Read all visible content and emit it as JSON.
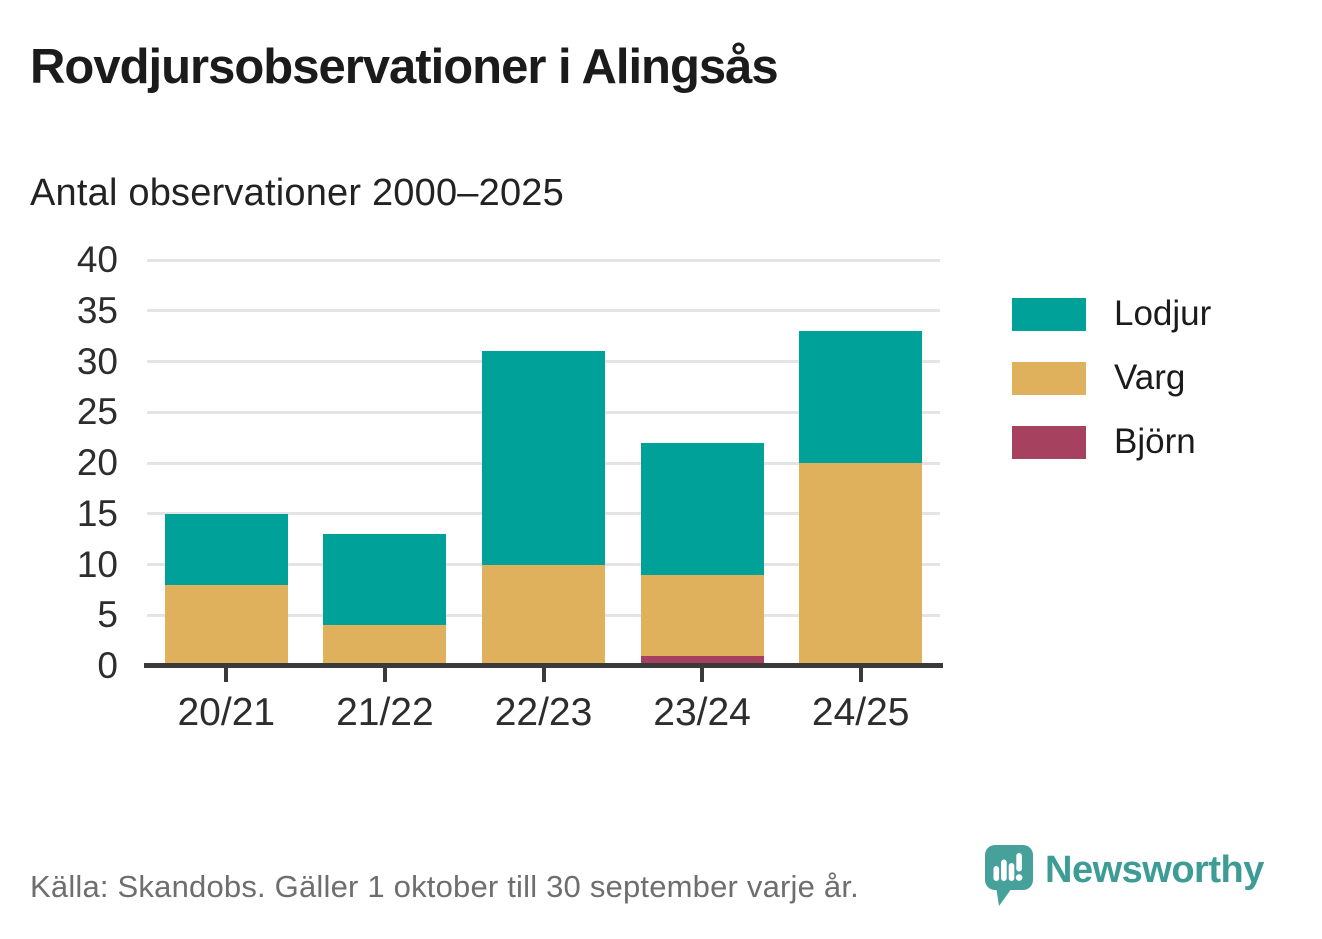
{
  "header": {
    "title": "Rovdjursobservationer i Alingsås",
    "subtitle": "Antal observationer 2000–2025"
  },
  "footer": {
    "source": "Källa: Skandobs. Gäller 1 oktober till 30 september varje år.",
    "brand": "Newsworthy"
  },
  "colors": {
    "lodjur": "#00a199",
    "varg": "#dfb15c",
    "bjorn": "#a64160",
    "axis": "#3a3a3a",
    "grid": "#e4e4e4",
    "text": "#1b1b1b",
    "muted": "#6e6e6e",
    "brand_teal": "#3d9c96",
    "logo_teal": "#47a19b"
  },
  "chart_data": {
    "type": "bar",
    "stacked": true,
    "title": "Rovdjursobservationer i Alingsås",
    "subtitle": "Antal observationer 2000–2025",
    "categories": [
      "20/21",
      "21/22",
      "22/23",
      "23/24",
      "24/25"
    ],
    "series": [
      {
        "name": "Lodjur",
        "color": "#00a199",
        "values": [
          7,
          9,
          21,
          13,
          13
        ]
      },
      {
        "name": "Varg",
        "color": "#dfb15c",
        "values": [
          8,
          4,
          10,
          8,
          20
        ]
      },
      {
        "name": "Björn",
        "color": "#a64160",
        "values": [
          0,
          0,
          0,
          1,
          0
        ]
      }
    ],
    "stack_order_bottom_to_top": [
      "Björn",
      "Varg",
      "Lodjur"
    ],
    "totals": [
      15,
      13,
      31,
      22,
      33
    ],
    "xlabel": "",
    "ylabel": "",
    "ylim": [
      0,
      40
    ],
    "ytick_step": 5,
    "grid": "horizontal",
    "legend_position": "right",
    "legend_entries": [
      "Lodjur",
      "Varg",
      "Björn"
    ]
  }
}
